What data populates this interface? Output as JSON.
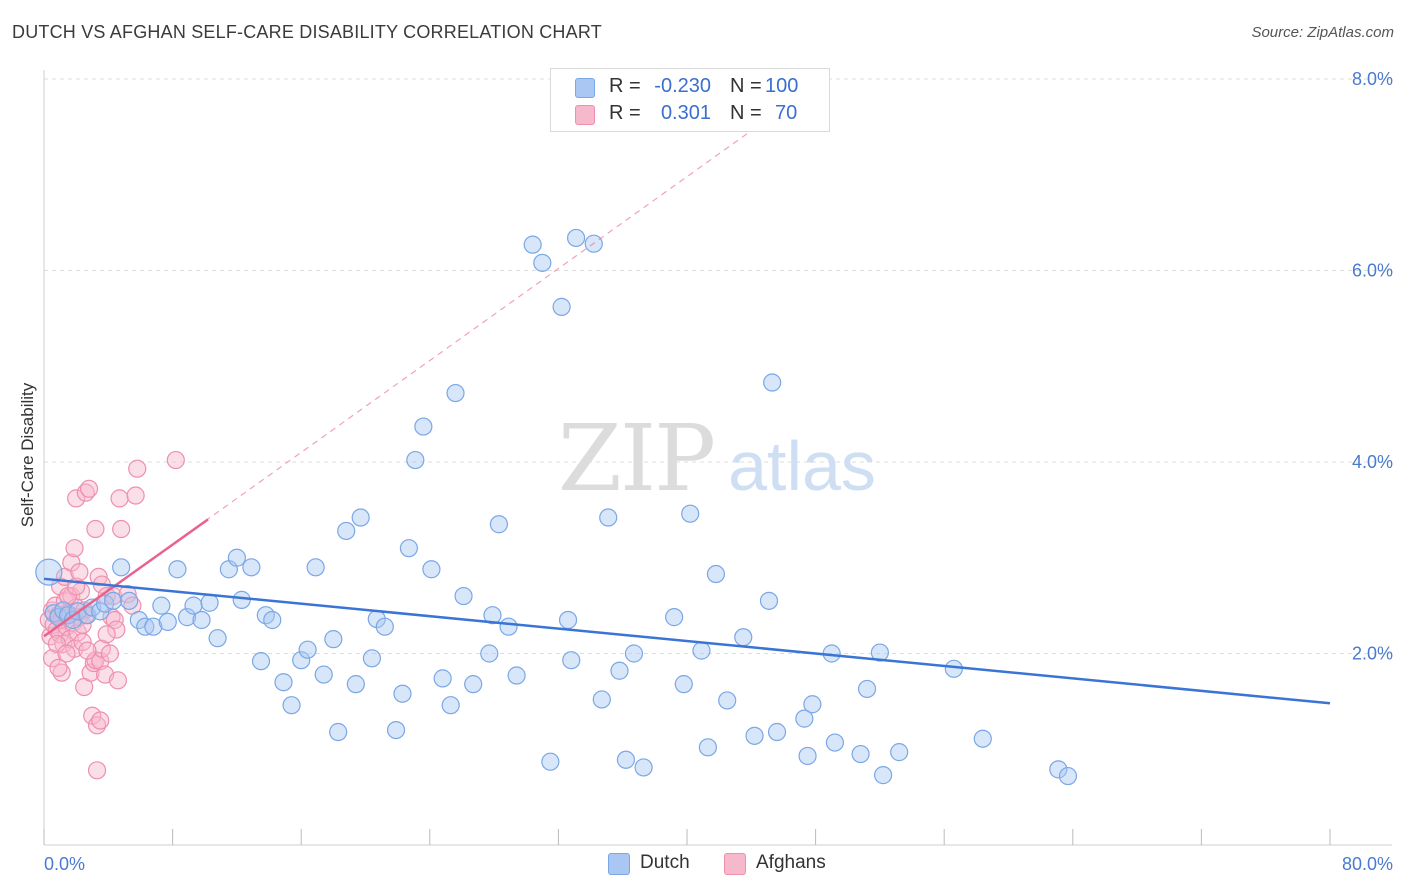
{
  "title": "DUTCH VS AFGHAN SELF-CARE DISABILITY CORRELATION CHART",
  "source": "Source: ZipAtlas.com",
  "watermark": {
    "zip": "ZIP",
    "atlas": "atlas"
  },
  "legend_top": {
    "rows": [
      {
        "r_label": "R =",
        "r_value": "-0.230",
        "n_label": "N =",
        "n_value": "100"
      },
      {
        "r_label": "R =",
        "r_value": "0.301",
        "n_label": "N =",
        "n_value": "70"
      }
    ]
  },
  "legend_bottom": {
    "items": [
      "Dutch",
      "Afghans"
    ]
  },
  "colors": {
    "dutch_fill": "#a9c7f2",
    "dutch_stroke": "#7aa7e6",
    "dutch_line": "#3a74d4",
    "afghan_fill": "#f6b8cb",
    "afghan_stroke": "#ee8fae",
    "afghan_line": "#e8638e",
    "axis_text": "#4a7ad0",
    "grid": "#dddddd"
  },
  "chart_data": {
    "type": "scatter",
    "title": "DUTCH VS AFGHAN SELF-CARE DISABILITY CORRELATION CHART",
    "xlabel": "",
    "ylabel": "Self-Care Disability",
    "xlim": [
      0,
      80
    ],
    "ylim": [
      0,
      8.6
    ],
    "x_tick_labels": {
      "0": "0.0%",
      "80": "80.0%"
    },
    "y_ticks": [
      2,
      4,
      6,
      8
    ],
    "y_tick_labels": [
      "2.0%",
      "4.0%",
      "6.0%",
      "8.0%"
    ],
    "grid": "horizontal dashed",
    "legend_position": "top-center and bottom-center",
    "series": [
      {
        "name": "Dutch",
        "r": -0.23,
        "n": 100,
        "trend": {
          "x": [
            0,
            80
          ],
          "y": [
            2.78,
            1.48
          ]
        },
        "points": [
          [
            0.3,
            2.85
          ],
          [
            0.6,
            2.42
          ],
          [
            0.9,
            2.38
          ],
          [
            1.2,
            2.45
          ],
          [
            1.5,
            2.4
          ],
          [
            1.8,
            2.35
          ],
          [
            2.1,
            2.44
          ],
          [
            2.7,
            2.4
          ],
          [
            3.0,
            2.48
          ],
          [
            3.5,
            2.44
          ],
          [
            3.8,
            2.52
          ],
          [
            4.3,
            2.55
          ],
          [
            4.8,
            2.9
          ],
          [
            5.3,
            2.55
          ],
          [
            5.9,
            2.35
          ],
          [
            6.3,
            2.28
          ],
          [
            6.8,
            2.28
          ],
          [
            7.3,
            2.5
          ],
          [
            7.7,
            2.33
          ],
          [
            8.3,
            2.88
          ],
          [
            8.9,
            2.38
          ],
          [
            9.3,
            2.5
          ],
          [
            9.8,
            2.35
          ],
          [
            10.3,
            2.53
          ],
          [
            10.8,
            2.16
          ],
          [
            11.5,
            2.88
          ],
          [
            12.0,
            3.0
          ],
          [
            12.3,
            2.56
          ],
          [
            12.9,
            2.9
          ],
          [
            13.5,
            1.92
          ],
          [
            13.8,
            2.4
          ],
          [
            14.2,
            2.35
          ],
          [
            14.9,
            1.7
          ],
          [
            15.4,
            1.46
          ],
          [
            16.0,
            1.93
          ],
          [
            16.4,
            2.04
          ],
          [
            16.9,
            2.9
          ],
          [
            17.4,
            1.78
          ],
          [
            18.0,
            2.15
          ],
          [
            18.3,
            1.18
          ],
          [
            18.8,
            3.28
          ],
          [
            19.4,
            1.68
          ],
          [
            19.7,
            3.42
          ],
          [
            20.4,
            1.95
          ],
          [
            20.7,
            2.36
          ],
          [
            21.2,
            2.28
          ],
          [
            21.9,
            1.2
          ],
          [
            22.3,
            1.58
          ],
          [
            22.7,
            3.1
          ],
          [
            23.1,
            4.02
          ],
          [
            23.6,
            4.37
          ],
          [
            24.1,
            2.88
          ],
          [
            24.8,
            1.74
          ],
          [
            25.3,
            1.46
          ],
          [
            25.6,
            4.72
          ],
          [
            26.1,
            2.6
          ],
          [
            26.7,
            1.68
          ],
          [
            27.9,
            2.4
          ],
          [
            27.7,
            2.0
          ],
          [
            28.3,
            3.35
          ],
          [
            28.9,
            2.28
          ],
          [
            29.4,
            1.77
          ],
          [
            30.4,
            6.27
          ],
          [
            31.0,
            6.08
          ],
          [
            31.5,
            0.87
          ],
          [
            32.2,
            5.62
          ],
          [
            32.6,
            2.35
          ],
          [
            32.8,
            1.93
          ],
          [
            33.1,
            6.34
          ],
          [
            34.2,
            6.28
          ],
          [
            34.7,
            1.52
          ],
          [
            35.1,
            3.42
          ],
          [
            35.8,
            1.82
          ],
          [
            36.2,
            0.89
          ],
          [
            36.7,
            2.0
          ],
          [
            37.3,
            0.81
          ],
          [
            39.2,
            2.38
          ],
          [
            39.8,
            1.68
          ],
          [
            40.2,
            3.46
          ],
          [
            40.9,
            2.03
          ],
          [
            41.3,
            1.02
          ],
          [
            41.8,
            2.83
          ],
          [
            42.5,
            1.51
          ],
          [
            43.5,
            2.17
          ],
          [
            44.2,
            1.14
          ],
          [
            45.1,
            2.55
          ],
          [
            45.3,
            4.83
          ],
          [
            45.6,
            1.18
          ],
          [
            47.3,
            1.32
          ],
          [
            47.5,
            0.93
          ],
          [
            47.8,
            1.47
          ],
          [
            49.0,
            2.0
          ],
          [
            49.2,
            1.07
          ],
          [
            50.8,
            0.95
          ],
          [
            51.2,
            1.63
          ],
          [
            52.0,
            2.01
          ],
          [
            52.2,
            0.73
          ],
          [
            53.2,
            0.97
          ],
          [
            56.6,
            1.84
          ],
          [
            58.4,
            1.11
          ],
          [
            63.1,
            0.79
          ],
          [
            63.7,
            0.72
          ]
        ]
      },
      {
        "name": "Afghans",
        "r": 0.301,
        "n": 70,
        "trend": {
          "x": [
            0,
            10.2
          ],
          "y": [
            2.18,
            3.4
          ]
        },
        "trend_extended": {
          "x": [
            0,
            45
          ],
          "y": [
            2.18,
            7.58
          ]
        },
        "points": [
          [
            0.3,
            2.35
          ],
          [
            0.4,
            2.18
          ],
          [
            0.5,
            2.45
          ],
          [
            0.6,
            2.3
          ],
          [
            0.7,
            2.5
          ],
          [
            0.8,
            2.25
          ],
          [
            0.9,
            2.4
          ],
          [
            1.0,
            2.2
          ],
          [
            1.0,
            2.7
          ],
          [
            1.1,
            2.35
          ],
          [
            1.2,
            2.1
          ],
          [
            1.3,
            2.55
          ],
          [
            1.4,
            2.28
          ],
          [
            1.5,
            2.42
          ],
          [
            1.6,
            2.15
          ],
          [
            1.7,
            2.6
          ],
          [
            1.8,
            2.32
          ],
          [
            1.9,
            2.05
          ],
          [
            2.0,
            2.48
          ],
          [
            2.1,
            2.22
          ],
          [
            2.2,
            2.38
          ],
          [
            2.3,
            2.65
          ],
          [
            2.4,
            2.12
          ],
          [
            2.5,
            2.45
          ],
          [
            0.5,
            1.95
          ],
          [
            0.8,
            2.1
          ],
          [
            1.1,
            1.8
          ],
          [
            1.3,
            2.8
          ],
          [
            1.5,
            2.6
          ],
          [
            1.7,
            2.95
          ],
          [
            2.0,
            2.7
          ],
          [
            2.2,
            2.85
          ],
          [
            1.9,
            3.1
          ],
          [
            2.0,
            3.62
          ],
          [
            2.6,
            3.68
          ],
          [
            2.8,
            3.72
          ],
          [
            3.2,
            3.3
          ],
          [
            3.4,
            2.8
          ],
          [
            3.6,
            2.72
          ],
          [
            3.9,
            2.6
          ],
          [
            2.5,
            1.65
          ],
          [
            2.9,
            1.8
          ],
          [
            3.1,
            1.9
          ],
          [
            3.2,
            1.93
          ],
          [
            3.5,
            1.92
          ],
          [
            3.6,
            2.05
          ],
          [
            2.7,
            2.03
          ],
          [
            3.0,
            1.35
          ],
          [
            3.3,
            1.25
          ],
          [
            3.5,
            1.3
          ],
          [
            3.3,
            0.78
          ],
          [
            3.8,
            1.78
          ],
          [
            4.1,
            2.0
          ],
          [
            4.2,
            2.38
          ],
          [
            4.4,
            2.35
          ],
          [
            4.5,
            2.25
          ],
          [
            4.3,
            2.6
          ],
          [
            4.6,
            1.72
          ],
          [
            4.7,
            3.62
          ],
          [
            4.8,
            3.3
          ],
          [
            5.2,
            2.62
          ],
          [
            5.5,
            2.5
          ],
          [
            5.7,
            3.65
          ],
          [
            5.8,
            3.93
          ],
          [
            8.2,
            4.02
          ],
          [
            2.4,
            2.3
          ],
          [
            1.4,
            2.0
          ],
          [
            2.6,
            2.4
          ],
          [
            3.9,
            2.2
          ],
          [
            0.9,
            1.85
          ]
        ]
      }
    ]
  }
}
